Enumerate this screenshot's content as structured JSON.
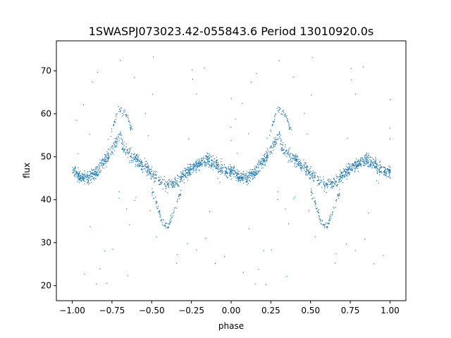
{
  "chart_data": {
    "type": "scatter",
    "title": "1SWASPJ073023.42-055843.6 Period 13010920.0s",
    "xlabel": "phase",
    "ylabel": "flux",
    "xlim": [
      -1.1,
      1.1
    ],
    "ylim": [
      16.5,
      77
    ],
    "x_ticks": [
      -1.0,
      -0.75,
      -0.5,
      -0.25,
      0.0,
      0.25,
      0.5,
      0.75,
      1.0
    ],
    "x_tick_labels": [
      "−1.00",
      "−0.75",
      "−0.50",
      "−0.25",
      "0.00",
      "0.25",
      "0.50",
      "0.75",
      "1.00"
    ],
    "y_ticks": [
      20,
      30,
      40,
      50,
      60,
      70
    ],
    "y_tick_labels": [
      "20",
      "30",
      "40",
      "50",
      "60",
      "70"
    ],
    "grid": false,
    "point_color": "#1f77b4",
    "series": [
      {
        "trend_x": [
          0.0,
          0.05,
          0.1,
          0.15,
          0.2,
          0.25,
          0.28,
          0.3,
          0.32,
          0.35,
          0.4,
          0.45,
          0.5,
          0.55,
          0.6,
          0.65,
          0.7,
          0.75,
          0.8,
          0.85,
          0.9,
          0.95,
          1.0
        ],
        "trend_y": [
          47,
          45.5,
          45,
          46.5,
          49,
          52,
          54,
          55,
          52,
          51,
          49.5,
          48,
          46,
          44.5,
          43.5,
          44,
          46,
          47.5,
          48.5,
          49.5,
          48.5,
          47,
          46.5
        ],
        "upper_branch_x": [
          0.24,
          0.26,
          0.28,
          0.3,
          0.32,
          0.34,
          0.36,
          0.38
        ],
        "upper_branch_y": [
          55,
          58,
          60.5,
          61,
          60.5,
          60,
          57.5,
          56
        ],
        "lower_branch_x": [
          0.5,
          0.54,
          0.56,
          0.58,
          0.6,
          0.62,
          0.64,
          0.66,
          0.68
        ],
        "lower_branch_y": [
          42,
          38,
          35,
          34,
          34,
          35.5,
          37.5,
          39.5,
          42
        ]
      }
    ]
  }
}
